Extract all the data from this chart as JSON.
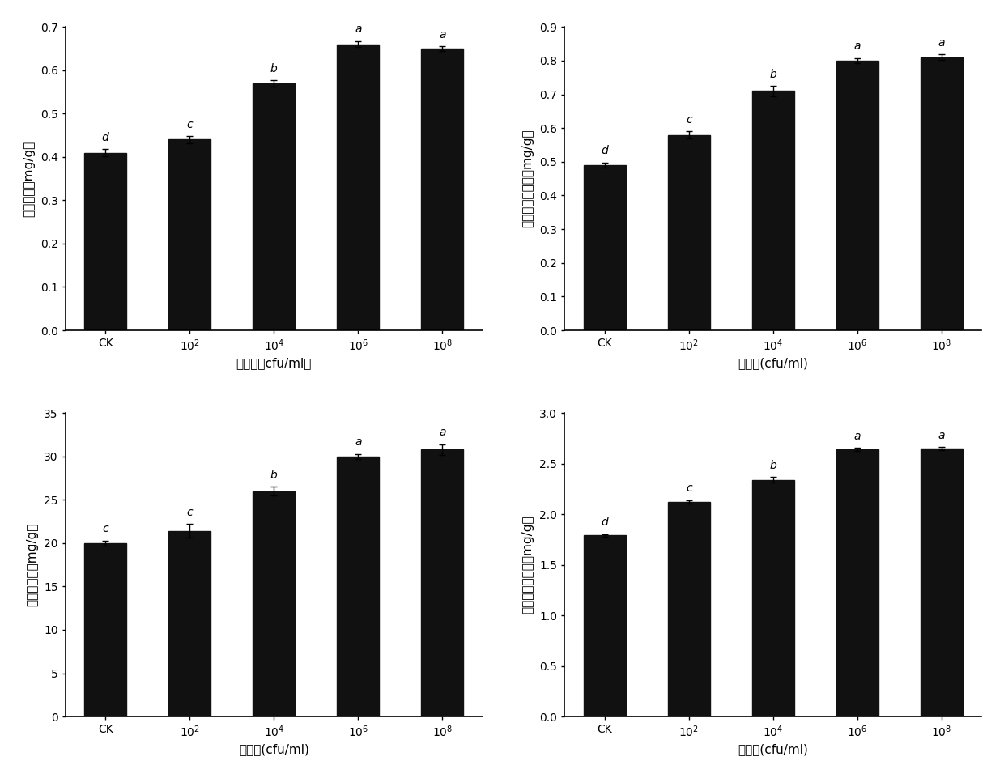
{
  "subplots": [
    {
      "ylabel": "脲酶活性（mg/g）",
      "xlabel": "菌浓度（cfu/ml）",
      "categories": [
        "CK",
        "10^2",
        "10^4",
        "10^6",
        "10^8"
      ],
      "values": [
        0.41,
        0.44,
        0.57,
        0.66,
        0.65
      ],
      "errors": [
        0.008,
        0.008,
        0.007,
        0.007,
        0.005
      ],
      "letters": [
        "d",
        "c",
        "b",
        "a",
        "a"
      ],
      "ylim": [
        0,
        0.7
      ],
      "yticks": [
        0.0,
        0.1,
        0.2,
        0.3,
        0.4,
        0.5,
        0.6,
        0.7
      ],
      "ytick_labels": [
        "0.0",
        "0.1",
        "0.2",
        "0.3",
        "0.4",
        "0.5",
        "0.6",
        "0.7"
      ]
    },
    {
      "ylabel": "碱性磷酸酶活性（mg/g）",
      "xlabel": "菌浓度(cfu/ml)",
      "categories": [
        "CK",
        "10^2",
        "10^4",
        "10^6",
        "10^8"
      ],
      "values": [
        0.49,
        0.58,
        0.71,
        0.8,
        0.81
      ],
      "errors": [
        0.008,
        0.01,
        0.015,
        0.008,
        0.008
      ],
      "letters": [
        "d",
        "c",
        "b",
        "a",
        "a"
      ],
      "ylim": [
        0,
        0.9
      ],
      "yticks": [
        0.0,
        0.1,
        0.2,
        0.3,
        0.4,
        0.5,
        0.6,
        0.7,
        0.8,
        0.9
      ],
      "ytick_labels": [
        "0.0",
        "0.1",
        "0.2",
        "0.3",
        "0.4",
        "0.5",
        "0.6",
        "0.7",
        "0.8",
        "0.9"
      ]
    },
    {
      "ylabel": "蔗糖酶活性（mg/g）",
      "xlabel": "菌浓度(cfu/ml)",
      "categories": [
        "CK",
        "10^2",
        "10^4",
        "10^6",
        "10^8"
      ],
      "values": [
        20.0,
        21.4,
        26.0,
        30.0,
        30.8
      ],
      "errors": [
        0.3,
        0.8,
        0.5,
        0.3,
        0.6
      ],
      "letters": [
        "c",
        "c",
        "b",
        "a",
        "a"
      ],
      "ylim": [
        0,
        35
      ],
      "yticks": [
        0,
        5,
        10,
        15,
        20,
        25,
        30,
        35
      ],
      "ytick_labels": [
        "0",
        "5",
        "10",
        "15",
        "20",
        "25",
        "30",
        "35"
      ]
    },
    {
      "ylabel": "过氧化氢酶活性（mg/g）",
      "xlabel": "菌浓度(cfu/ml)",
      "categories": [
        "CK",
        "10^2",
        "10^4",
        "10^6",
        "10^8"
      ],
      "values": [
        1.79,
        2.12,
        2.34,
        2.64,
        2.65
      ],
      "errors": [
        0.015,
        0.018,
        0.03,
        0.015,
        0.015
      ],
      "letters": [
        "d",
        "c",
        "b",
        "a",
        "a"
      ],
      "ylim": [
        0,
        3.0
      ],
      "yticks": [
        0.0,
        0.5,
        1.0,
        1.5,
        2.0,
        2.5,
        3.0
      ],
      "ytick_labels": [
        "0.0",
        "0.5",
        "1.0",
        "1.5",
        "2.0",
        "2.5",
        "3.0"
      ]
    }
  ],
  "bar_color": "#111111",
  "bar_width": 0.5,
  "background_color": "#ffffff",
  "letter_fontsize": 10,
  "axis_label_fontsize": 11,
  "tick_fontsize": 10
}
